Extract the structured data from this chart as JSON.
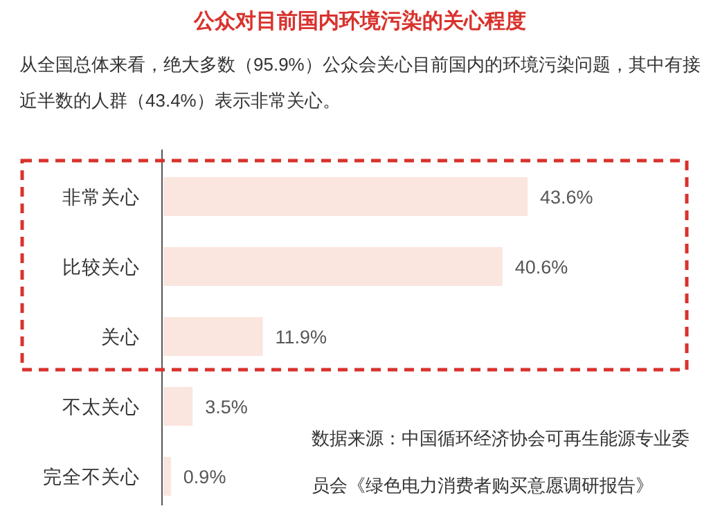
{
  "chart_data": {
    "type": "bar",
    "orientation": "horizontal",
    "title": "公众对目前国内环境污染的关心程度",
    "subtitle": "从全国总体来看，绝大多数（95.9%）公众会关心目前国内的环境污染问题，其中有接近半数的人群（43.4%）表示非常关心。",
    "categories": [
      "非常关心",
      "比较关心",
      "关心",
      "不太关心",
      "完全不关心"
    ],
    "values": [
      43.6,
      40.6,
      11.9,
      3.5,
      0.9
    ],
    "value_labels": [
      "43.6%",
      "40.6%",
      "11.9%",
      "3.5%",
      "0.9%"
    ],
    "color": "#fbe5df",
    "annotations": [
      "数据来源：中国循环经济协会可再生能源专业委员会《绿色电力消费者购买意愿调研报告》"
    ]
  }
}
